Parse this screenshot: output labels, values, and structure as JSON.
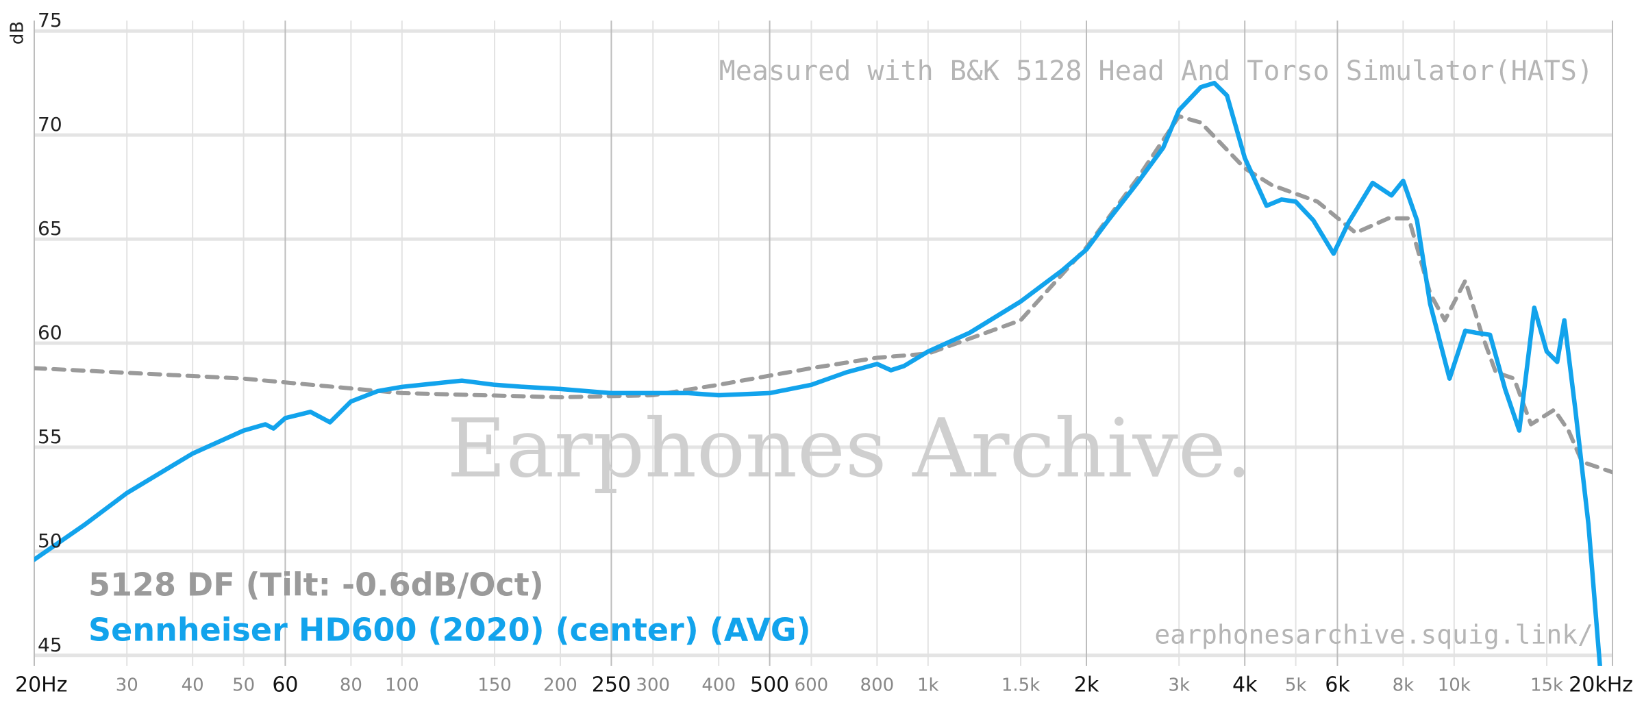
{
  "chart_data": {
    "type": "line",
    "x_scale": "log",
    "y_label": "dB",
    "annotations": [
      "Measured with B&K 5128 Head And Torso Simulator(HATS)",
      "Earphones Archive.",
      "earphonesarchive.squig.link/"
    ],
    "xlim": [
      20,
      20000
    ],
    "ylim": [
      44.5,
      75.5
    ],
    "yticks": [
      45,
      50,
      55,
      60,
      65,
      70,
      75
    ],
    "xticks_major": [
      {
        "value": 20,
        "label": "20Hz"
      },
      60,
      250,
      500,
      {
        "value": 2000,
        "label": "2k"
      },
      {
        "value": 4000,
        "label": "4k"
      },
      {
        "value": 6000,
        "label": "6k"
      },
      {
        "value": 20000,
        "label": "20kHz"
      }
    ],
    "xticks_minor": [
      30,
      40,
      50,
      80,
      100,
      150,
      200,
      300,
      400,
      600,
      800,
      {
        "value": 1000,
        "label": "1k"
      },
      {
        "value": 1500,
        "label": "1.5k"
      },
      {
        "value": 3000,
        "label": "3k"
      },
      {
        "value": 5000,
        "label": "5k"
      },
      {
        "value": 8000,
        "label": "8k"
      },
      {
        "value": 10000,
        "label": "10k"
      },
      {
        "value": 15000,
        "label": "15k"
      }
    ],
    "grid": true,
    "legend": "lower left",
    "series": [
      {
        "name": "5128 DF (Tilt: -0.6dB/Oct)",
        "color": "#9a9a9a",
        "dashed": true,
        "x": [
          20,
          50,
          100,
          200,
          300,
          400,
          600,
          800,
          1000,
          1500,
          2000,
          2500,
          3000,
          3300,
          4000,
          4500,
          5500,
          6500,
          7500,
          8200,
          9000,
          9600,
          10500,
          11300,
          12000,
          13000,
          14000,
          15500,
          16500,
          17500,
          20000
        ],
        "values": [
          58.8,
          58.3,
          57.6,
          57.4,
          57.5,
          58.0,
          58.8,
          59.3,
          59.5,
          61.1,
          64.6,
          67.9,
          70.9,
          70.6,
          68.4,
          67.6,
          66.8,
          65.3,
          66.0,
          66.0,
          62.4,
          61.1,
          63.0,
          60.4,
          58.6,
          58.3,
          56.1,
          56.8,
          55.8,
          54.3,
          53.8
        ]
      },
      {
        "name": "Sennheiser HD600 (2020) (center) (AVG)",
        "color": "#12a3ec",
        "dashed": false,
        "x": [
          20,
          25,
          30,
          40,
          50,
          55,
          57,
          60,
          67,
          73,
          80,
          90,
          100,
          130,
          150,
          170,
          200,
          250,
          300,
          350,
          400,
          500,
          600,
          700,
          800,
          850,
          900,
          1000,
          1200,
          1500,
          1800,
          2000,
          2200,
          2500,
          2800,
          3000,
          3300,
          3500,
          3700,
          4000,
          4400,
          4700,
          5000,
          5400,
          5900,
          6300,
          7000,
          7600,
          8000,
          8500,
          9000,
          9800,
          10500,
          11000,
          11700,
          12500,
          13300,
          14200,
          15000,
          15700,
          16200,
          17000,
          18000,
          19000
        ],
        "values": [
          49.6,
          51.3,
          52.8,
          54.7,
          55.8,
          56.1,
          55.9,
          56.4,
          56.7,
          56.2,
          57.2,
          57.7,
          57.9,
          58.2,
          58.0,
          57.9,
          57.8,
          57.6,
          57.6,
          57.6,
          57.5,
          57.6,
          58.0,
          58.6,
          59.0,
          58.7,
          58.9,
          59.6,
          60.5,
          62.0,
          63.5,
          64.5,
          65.9,
          67.7,
          69.4,
          71.2,
          72.3,
          72.5,
          71.9,
          68.9,
          66.6,
          66.9,
          66.8,
          65.9,
          64.3,
          65.8,
          67.7,
          67.1,
          67.8,
          65.9,
          61.9,
          58.3,
          60.6,
          60.5,
          60.4,
          57.8,
          55.8,
          61.7,
          59.6,
          59.1,
          61.1,
          56.8,
          51.3,
          44.0
        ]
      }
    ]
  }
}
